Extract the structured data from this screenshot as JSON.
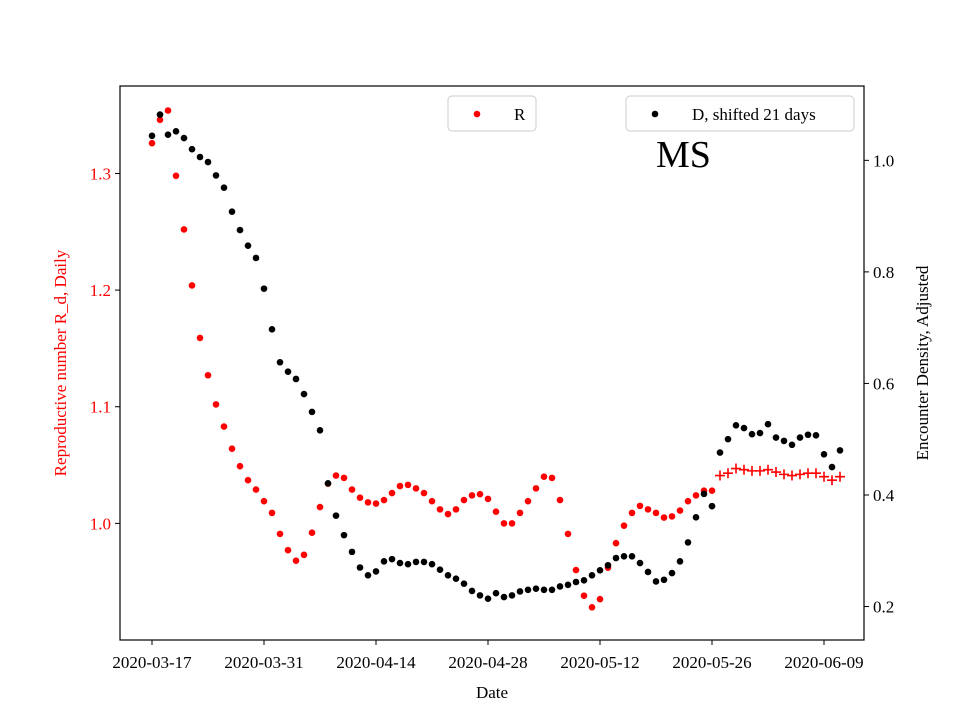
{
  "chart_data": {
    "type": "scatter",
    "xlabel": "Date",
    "ylabel_left": "Reproductive number R_d, Daily",
    "ylabel_right": "Encounter Density, Adjusted",
    "annotation": "MS",
    "x_range": [
      "2020-03-13",
      "2020-06-14"
    ],
    "ylim_left": [
      0.9,
      1.375
    ],
    "ylim_right": [
      0.14,
      1.1333
    ],
    "x_ticks": [
      "2020-03-17",
      "2020-03-31",
      "2020-04-14",
      "2020-04-28",
      "2020-05-12",
      "2020-05-26",
      "2020-06-09"
    ],
    "y_ticks_left": [
      "1.0",
      "1.1",
      "1.2",
      "1.3"
    ],
    "y_ticks_right": [
      "0.2",
      "0.4",
      "0.6",
      "0.8",
      "1.0"
    ],
    "grid": false,
    "legends": [
      {
        "label": "R",
        "color": "#ff0000",
        "placement": "upper-center"
      },
      {
        "label": "D, shifted 21 days",
        "color": "#000000",
        "placement": "upper-right"
      }
    ],
    "colors": {
      "R": "#ff0000",
      "D": "#000000",
      "left_axis": "#ff0000",
      "right_axis": "#000000"
    },
    "series": [
      {
        "name": "R",
        "axis": "left",
        "marker": "dot",
        "x": [
          "2020-03-17",
          "2020-03-18",
          "2020-03-19",
          "2020-03-20",
          "2020-03-21",
          "2020-03-22",
          "2020-03-23",
          "2020-03-24",
          "2020-03-25",
          "2020-03-26",
          "2020-03-27",
          "2020-03-28",
          "2020-03-29",
          "2020-03-30",
          "2020-03-31",
          "2020-04-01",
          "2020-04-02",
          "2020-04-03",
          "2020-04-04",
          "2020-04-05",
          "2020-04-06",
          "2020-04-07",
          "2020-04-08",
          "2020-04-09",
          "2020-04-10",
          "2020-04-11",
          "2020-04-12",
          "2020-04-13",
          "2020-04-14",
          "2020-04-15",
          "2020-04-16",
          "2020-04-17",
          "2020-04-18",
          "2020-04-19",
          "2020-04-20",
          "2020-04-21",
          "2020-04-22",
          "2020-04-23",
          "2020-04-24",
          "2020-04-25",
          "2020-04-26",
          "2020-04-27",
          "2020-04-28",
          "2020-04-29",
          "2020-04-30",
          "2020-05-01",
          "2020-05-02",
          "2020-05-03",
          "2020-05-04",
          "2020-05-05",
          "2020-05-06",
          "2020-05-07",
          "2020-05-08",
          "2020-05-09",
          "2020-05-10",
          "2020-05-11",
          "2020-05-12",
          "2020-05-13",
          "2020-05-14",
          "2020-05-15",
          "2020-05-16",
          "2020-05-17",
          "2020-05-18",
          "2020-05-19",
          "2020-05-20",
          "2020-05-21",
          "2020-05-22",
          "2020-05-23",
          "2020-05-24",
          "2020-05-25",
          "2020-05-26"
        ],
        "y": [
          1.326,
          1.346,
          1.354,
          1.298,
          1.252,
          1.204,
          1.159,
          1.127,
          1.102,
          1.083,
          1.064,
          1.049,
          1.037,
          1.029,
          1.019,
          1.009,
          0.991,
          0.977,
          0.968,
          0.973,
          0.992,
          1.014,
          1.034,
          1.041,
          1.039,
          1.029,
          1.022,
          1.018,
          1.017,
          1.02,
          1.026,
          1.032,
          1.033,
          1.03,
          1.026,
          1.019,
          1.012,
          1.008,
          1.012,
          1.02,
          1.024,
          1.025,
          1.021,
          1.01,
          1.0,
          1.0,
          1.009,
          1.019,
          1.03,
          1.04,
          1.039,
          1.02,
          0.991,
          0.96,
          0.938,
          0.928,
          0.935,
          0.962,
          0.983,
          0.998,
          1.009,
          1.015,
          1.012,
          1.009,
          1.005,
          1.006,
          1.011,
          1.019,
          1.024,
          1.028,
          1.028
        ]
      },
      {
        "name": "R",
        "axis": "left",
        "marker": "plus",
        "x": [
          "2020-05-27",
          "2020-05-28",
          "2020-05-29",
          "2020-05-30",
          "2020-05-31",
          "2020-06-01",
          "2020-06-02",
          "2020-06-03",
          "2020-06-04",
          "2020-06-05",
          "2020-06-06",
          "2020-06-07",
          "2020-06-08",
          "2020-06-09",
          "2020-06-10",
          "2020-06-11"
        ],
        "y": [
          1.041,
          1.043,
          1.047,
          1.046,
          1.045,
          1.045,
          1.046,
          1.044,
          1.042,
          1.041,
          1.042,
          1.043,
          1.043,
          1.04,
          1.037,
          1.04
        ]
      },
      {
        "name": "D, shifted 21 days",
        "axis": "right",
        "marker": "dot",
        "x": [
          "2020-03-17",
          "2020-03-18",
          "2020-03-19",
          "2020-03-20",
          "2020-03-21",
          "2020-03-22",
          "2020-03-23",
          "2020-03-24",
          "2020-03-25",
          "2020-03-26",
          "2020-03-27",
          "2020-03-28",
          "2020-03-29",
          "2020-03-30",
          "2020-03-31",
          "2020-04-01",
          "2020-04-02",
          "2020-04-03",
          "2020-04-04",
          "2020-04-05",
          "2020-04-06",
          "2020-04-07",
          "2020-04-08",
          "2020-04-09",
          "2020-04-10",
          "2020-04-11",
          "2020-04-12",
          "2020-04-13",
          "2020-04-14",
          "2020-04-15",
          "2020-04-16",
          "2020-04-17",
          "2020-04-18",
          "2020-04-19",
          "2020-04-20",
          "2020-04-21",
          "2020-04-22",
          "2020-04-23",
          "2020-04-24",
          "2020-04-25",
          "2020-04-26",
          "2020-04-27",
          "2020-04-28",
          "2020-04-29",
          "2020-04-30",
          "2020-05-01",
          "2020-05-02",
          "2020-05-03",
          "2020-05-04",
          "2020-05-05",
          "2020-05-06",
          "2020-05-07",
          "2020-05-08",
          "2020-05-09",
          "2020-05-10",
          "2020-05-11",
          "2020-05-12",
          "2020-05-13",
          "2020-05-14",
          "2020-05-15",
          "2020-05-16",
          "2020-05-17",
          "2020-05-18",
          "2020-05-19",
          "2020-05-20",
          "2020-05-21",
          "2020-05-22",
          "2020-05-23",
          "2020-05-24",
          "2020-05-25",
          "2020-05-26",
          "2020-05-27",
          "2020-05-28",
          "2020-05-29",
          "2020-05-30",
          "2020-05-31",
          "2020-06-01",
          "2020-06-02",
          "2020-06-03",
          "2020-06-04",
          "2020-06-05",
          "2020-06-06",
          "2020-06-07",
          "2020-06-08",
          "2020-06-09",
          "2020-06-10",
          "2020-06-11"
        ],
        "y": [
          1.044,
          1.082,
          1.046,
          1.052,
          1.04,
          1.02,
          1.006,
          0.997,
          0.973,
          0.951,
          0.908,
          0.875,
          0.847,
          0.825,
          0.77,
          0.697,
          0.638,
          0.621,
          0.608,
          0.581,
          0.549,
          0.516,
          0.421,
          0.363,
          0.328,
          0.298,
          0.27,
          0.256,
          0.263,
          0.281,
          0.285,
          0.278,
          0.276,
          0.28,
          0.28,
          0.276,
          0.266,
          0.256,
          0.25,
          0.241,
          0.228,
          0.22,
          0.214,
          0.224,
          0.217,
          0.22,
          0.227,
          0.23,
          0.232,
          0.23,
          0.23,
          0.236,
          0.239,
          0.244,
          0.247,
          0.256,
          0.265,
          0.274,
          0.287,
          0.29,
          0.29,
          0.278,
          0.262,
          0.245,
          0.248,
          0.26,
          0.281,
          0.315,
          0.36,
          0.402,
          0.38,
          0.476,
          0.5,
          0.525,
          0.52,
          0.509,
          0.511,
          0.527,
          0.503,
          0.497,
          0.49,
          0.503,
          0.508,
          0.507,
          0.473,
          0.45,
          0.48
        ]
      }
    ]
  }
}
